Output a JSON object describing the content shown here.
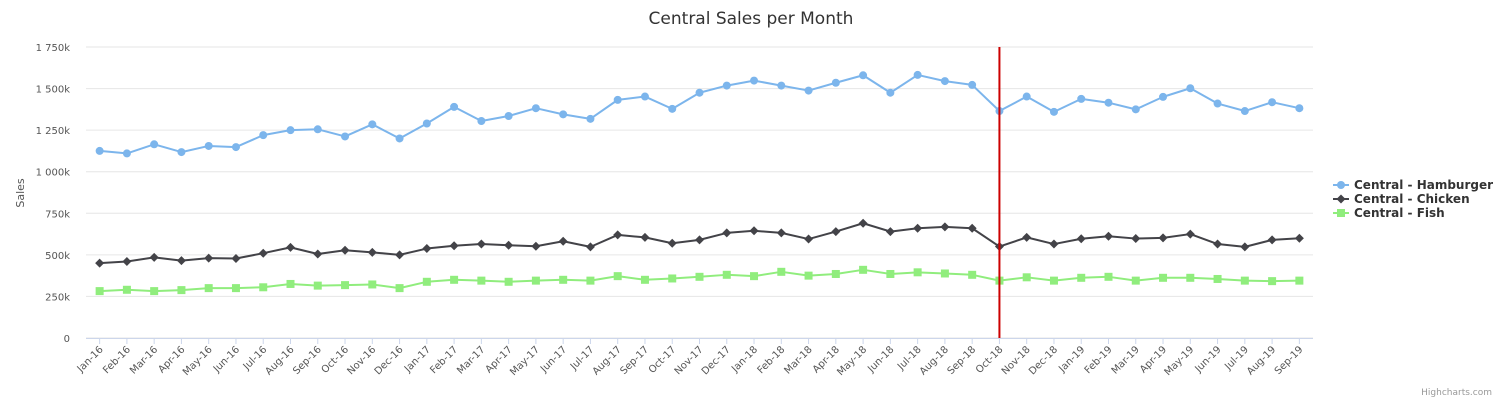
{
  "chart_data": {
    "type": "line",
    "title": "Central Sales per Month",
    "xlabel": "",
    "ylabel": "Sales",
    "ylim": [
      0,
      1750000
    ],
    "y_ticks": [
      {
        "value": 0,
        "label": "0"
      },
      {
        "value": 250000,
        "label": "250k"
      },
      {
        "value": 500000,
        "label": "500k"
      },
      {
        "value": 750000,
        "label": "750k"
      },
      {
        "value": 1000000,
        "label": "1 000k"
      },
      {
        "value": 1250000,
        "label": "1 250k"
      },
      {
        "value": 1500000,
        "label": "1 500k"
      },
      {
        "value": 1750000,
        "label": "1 750k"
      }
    ],
    "grid": true,
    "legend_position": "right",
    "categories": [
      "Jan-16",
      "Feb-16",
      "Mar-16",
      "Apr-16",
      "May-16",
      "Jun-16",
      "Jul-16",
      "Aug-16",
      "Sep-16",
      "Oct-16",
      "Nov-16",
      "Dec-16",
      "Jan-17",
      "Feb-17",
      "Mar-17",
      "Apr-17",
      "May-17",
      "Jun-17",
      "Jul-17",
      "Aug-17",
      "Sep-17",
      "Oct-17",
      "Nov-17",
      "Dec-17",
      "Jan-18",
      "Feb-18",
      "Mar-18",
      "Apr-18",
      "May-18",
      "Jun-18",
      "Jul-18",
      "Aug-18",
      "Sep-18",
      "Oct-18",
      "Nov-18",
      "Dec-18",
      "Jan-19",
      "Feb-19",
      "Mar-19",
      "Apr-19",
      "May-19",
      "Jun-19",
      "Jul-19",
      "Aug-19",
      "Sep-19"
    ],
    "series": [
      {
        "name": "Central - Hamburger",
        "color": "#7cb5ec",
        "marker": "circle",
        "values": [
          1125000,
          1110000,
          1165000,
          1118000,
          1155000,
          1148000,
          1220000,
          1250000,
          1255000,
          1212000,
          1285000,
          1200000,
          1290000,
          1390000,
          1305000,
          1335000,
          1382000,
          1345000,
          1318000,
          1432000,
          1452000,
          1378000,
          1475000,
          1518000,
          1548000,
          1518000,
          1488000,
          1535000,
          1580000,
          1475000,
          1582000,
          1545000,
          1522000,
          1365000,
          1452000,
          1360000,
          1438000,
          1415000,
          1375000,
          1450000,
          1502000,
          1410000,
          1365000,
          1418000,
          1382000
        ]
      },
      {
        "name": "Central - Chicken",
        "color": "#434348",
        "marker": "diamond",
        "values": [
          450000,
          460000,
          485000,
          465000,
          480000,
          478000,
          510000,
          545000,
          505000,
          528000,
          515000,
          500000,
          538000,
          555000,
          565000,
          558000,
          552000,
          582000,
          548000,
          620000,
          605000,
          570000,
          590000,
          632000,
          645000,
          632000,
          595000,
          640000,
          690000,
          640000,
          660000,
          668000,
          660000,
          550000,
          605000,
          565000,
          597000,
          612000,
          598000,
          602000,
          625000,
          565000,
          548000,
          590000,
          600000
        ]
      },
      {
        "name": "Central - Fish",
        "color": "#90ed7d",
        "marker": "square",
        "values": [
          282000,
          290000,
          282000,
          288000,
          300000,
          300000,
          305000,
          325000,
          315000,
          318000,
          322000,
          300000,
          338000,
          350000,
          345000,
          338000,
          345000,
          350000,
          345000,
          372000,
          350000,
          358000,
          368000,
          380000,
          372000,
          398000,
          375000,
          385000,
          410000,
          385000,
          395000,
          388000,
          380000,
          345000,
          365000,
          345000,
          362000,
          368000,
          345000,
          362000,
          362000,
          355000,
          345000,
          342000,
          345000
        ]
      }
    ],
    "plot_lines": [
      {
        "category": "Oct-18",
        "color": "#cc0000"
      }
    ]
  },
  "credits": "Highcharts.com"
}
